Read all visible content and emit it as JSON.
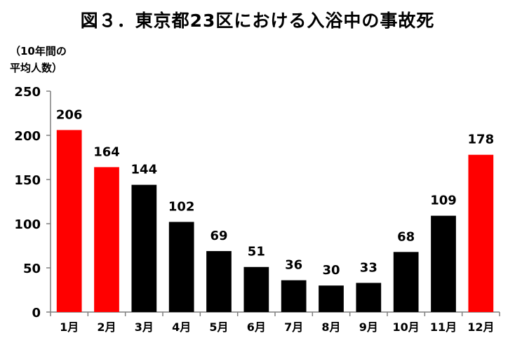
{
  "chart_data": {
    "type": "bar",
    "title": "図３．東京都23区における入浴中の事故死",
    "ylabel_lines": [
      "（10年間の",
      "平均人数）"
    ],
    "xlabel": "",
    "categories": [
      "1月",
      "2月",
      "3月",
      "4月",
      "5月",
      "6月",
      "7月",
      "8月",
      "9月",
      "10月",
      "11月",
      "12月"
    ],
    "values": [
      206,
      164,
      144,
      102,
      69,
      51,
      36,
      30,
      33,
      68,
      109,
      178
    ],
    "ylim": [
      0,
      250
    ],
    "yticks": [
      0,
      50,
      100,
      150,
      200,
      250
    ],
    "grid": false,
    "legend": "none",
    "highlight_months": [
      "1月",
      "2月",
      "12月"
    ],
    "colors": {
      "highlight": "#ff0000",
      "normal": "#000000",
      "axis": "#7f7f7f"
    }
  }
}
